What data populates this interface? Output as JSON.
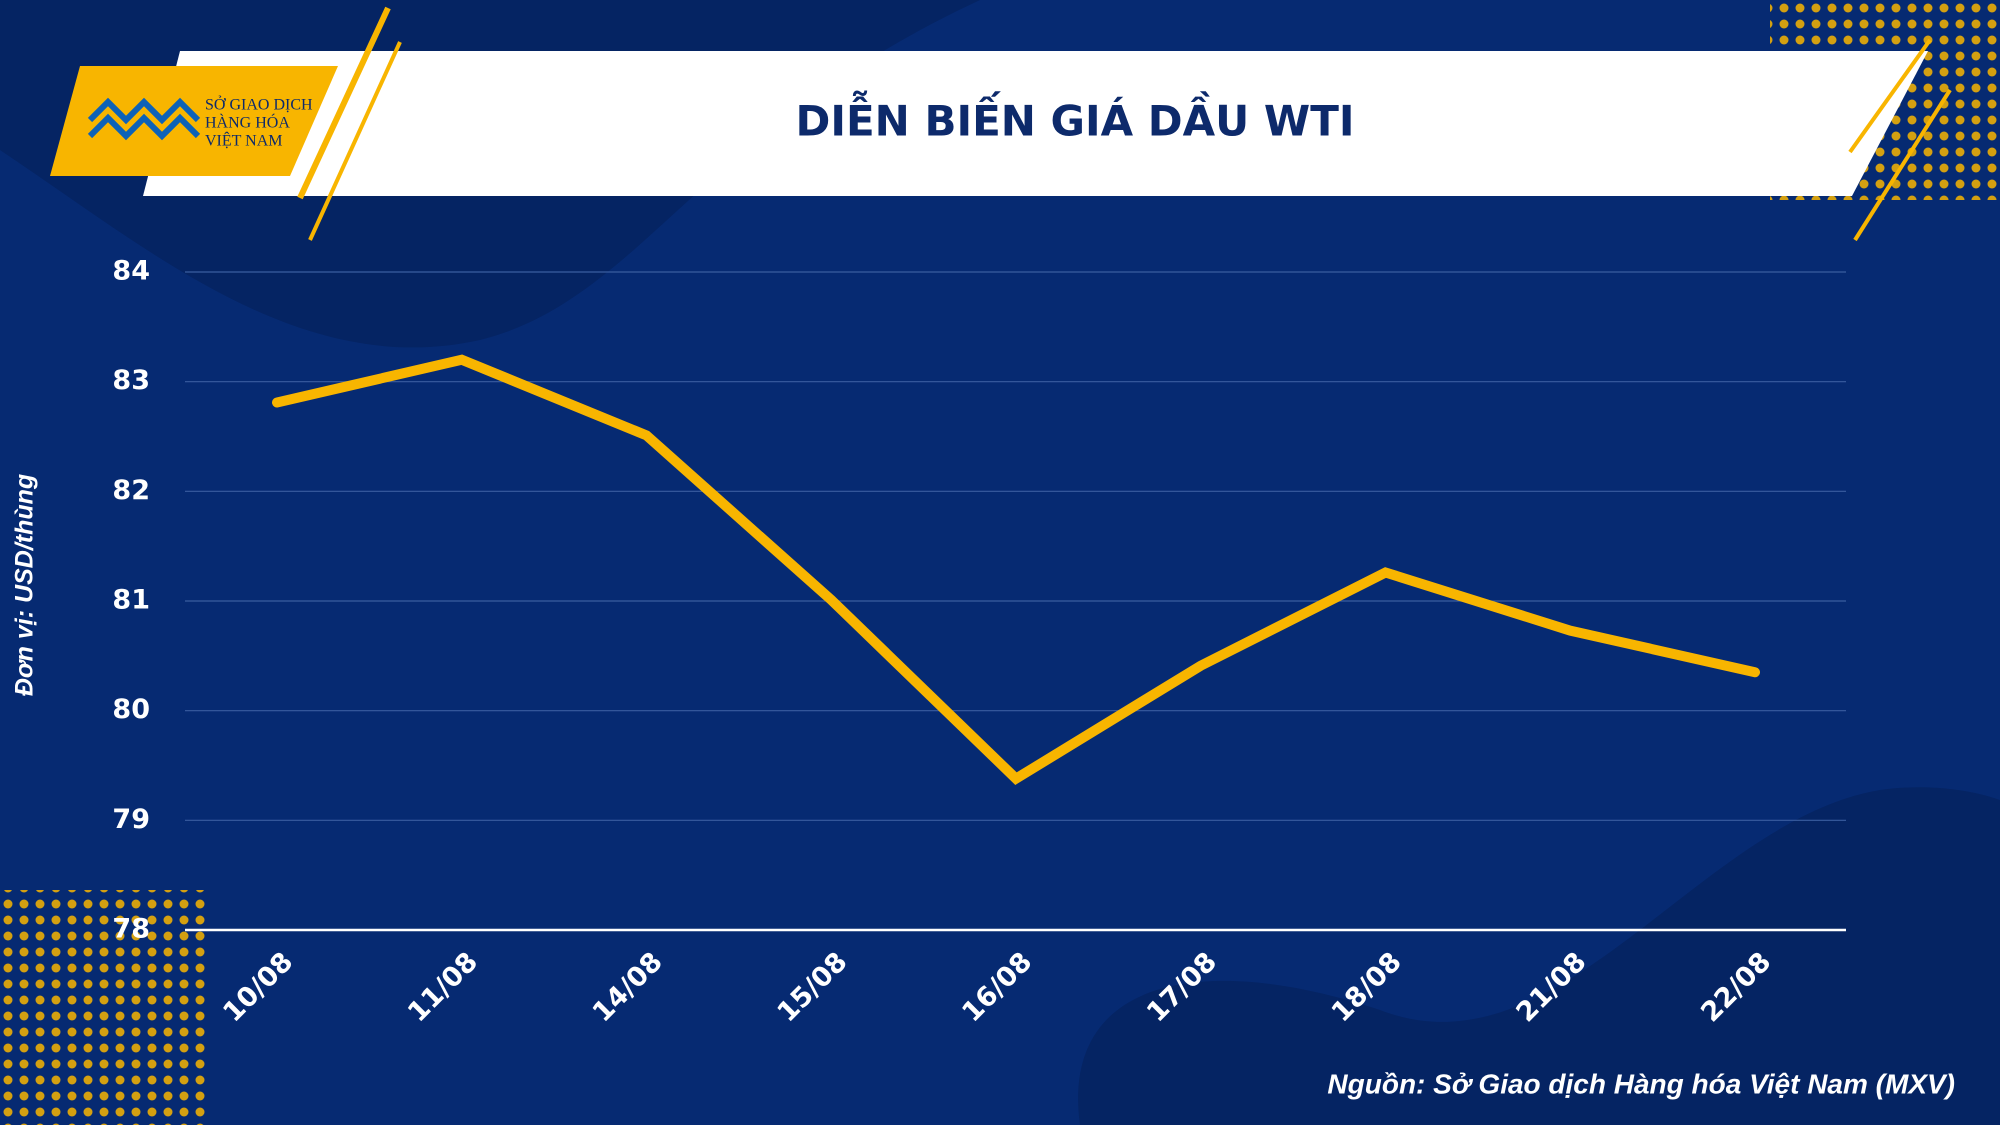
{
  "logo": {
    "lines": [
      "SỞ GIAO DỊCH",
      "HÀNG HÓA",
      "VIỆT NAM"
    ]
  },
  "chart_data": {
    "type": "line",
    "title": "DIỄN BIẾN GIÁ DẦU WTI",
    "y_label": "Đơn vị: USD/thùng",
    "source": "Nguồn: Sở Giao dịch Hàng hóa Việt Nam (MXV)",
    "categories": [
      "10/08",
      "11/08",
      "14/08",
      "15/08",
      "16/08",
      "17/08",
      "18/08",
      "21/08",
      "22/08"
    ],
    "series": [
      {
        "color": "#f8b500",
        "values": [
          82.81,
          83.2,
          82.51,
          81.01,
          79.38,
          80.41,
          81.26,
          80.73,
          80.35
        ]
      }
    ],
    "ylim": [
      78,
      84
    ],
    "yticks": [
      78,
      79,
      80,
      81,
      82,
      83,
      84
    ],
    "grid": true
  }
}
